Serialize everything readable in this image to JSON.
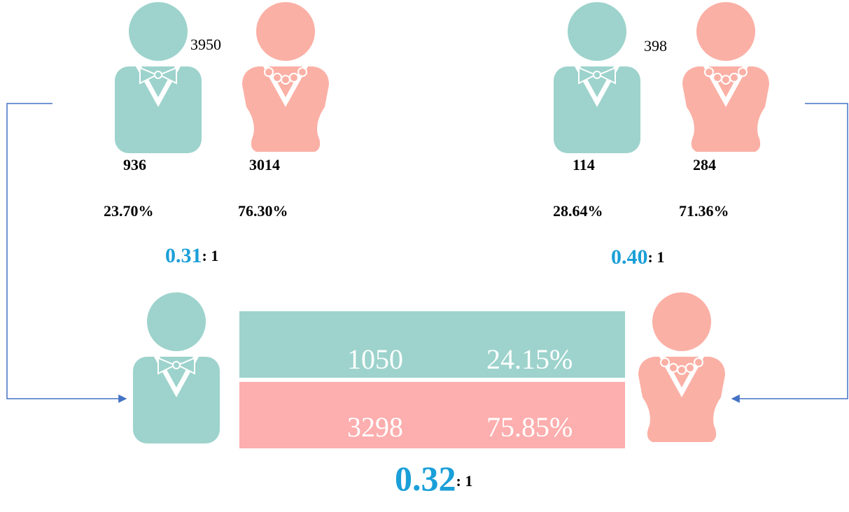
{
  "left_group": {
    "total": "3950",
    "male": {
      "count": "936",
      "percent": "23.70%"
    },
    "female": {
      "count": "3014",
      "percent": "76.30%"
    },
    "ratio": {
      "value": "0.31",
      "suffix": ": 1"
    }
  },
  "right_group": {
    "total": "398",
    "male": {
      "count": "114",
      "percent": "28.64%"
    },
    "female": {
      "count": "284",
      "percent": "71.36%"
    },
    "ratio": {
      "value": "0.40",
      "suffix": ": 1"
    }
  },
  "summary": {
    "male": {
      "count": "1050",
      "percent": "24.15%"
    },
    "female": {
      "count": "3298",
      "percent": "75.85%"
    },
    "ratio": {
      "value": "0.32",
      "suffix": ": 1"
    }
  }
}
